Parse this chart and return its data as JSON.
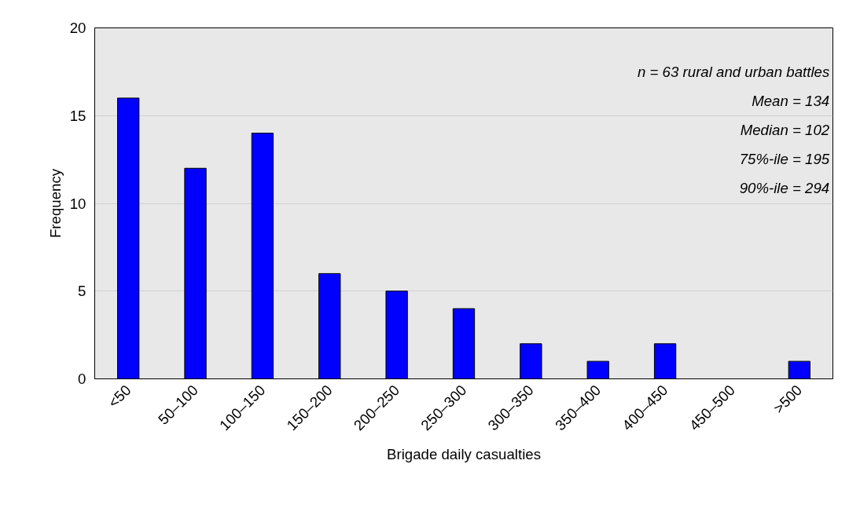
{
  "chart_data": {
    "type": "bar",
    "xlabel": "Brigade daily casualties",
    "ylabel": "Frequency",
    "categories": [
      "<50",
      "50–100",
      "100–150",
      "150–200",
      "200–250",
      "250–300",
      "300–350",
      "350–400",
      "400–450",
      "450–500",
      ">500"
    ],
    "values": [
      16,
      12,
      14,
      6,
      5,
      4,
      2,
      1,
      2,
      0,
      1
    ],
    "color": "#0000ff",
    "ylim": [
      0,
      20
    ],
    "yticks": [
      0,
      5,
      10,
      15,
      20
    ],
    "grid": "y",
    "annotations": [
      "n = 63 rural and urban battles",
      "Mean = 134",
      "Median = 102",
      "75%-ile = 195",
      "90%-ile = 294"
    ]
  }
}
